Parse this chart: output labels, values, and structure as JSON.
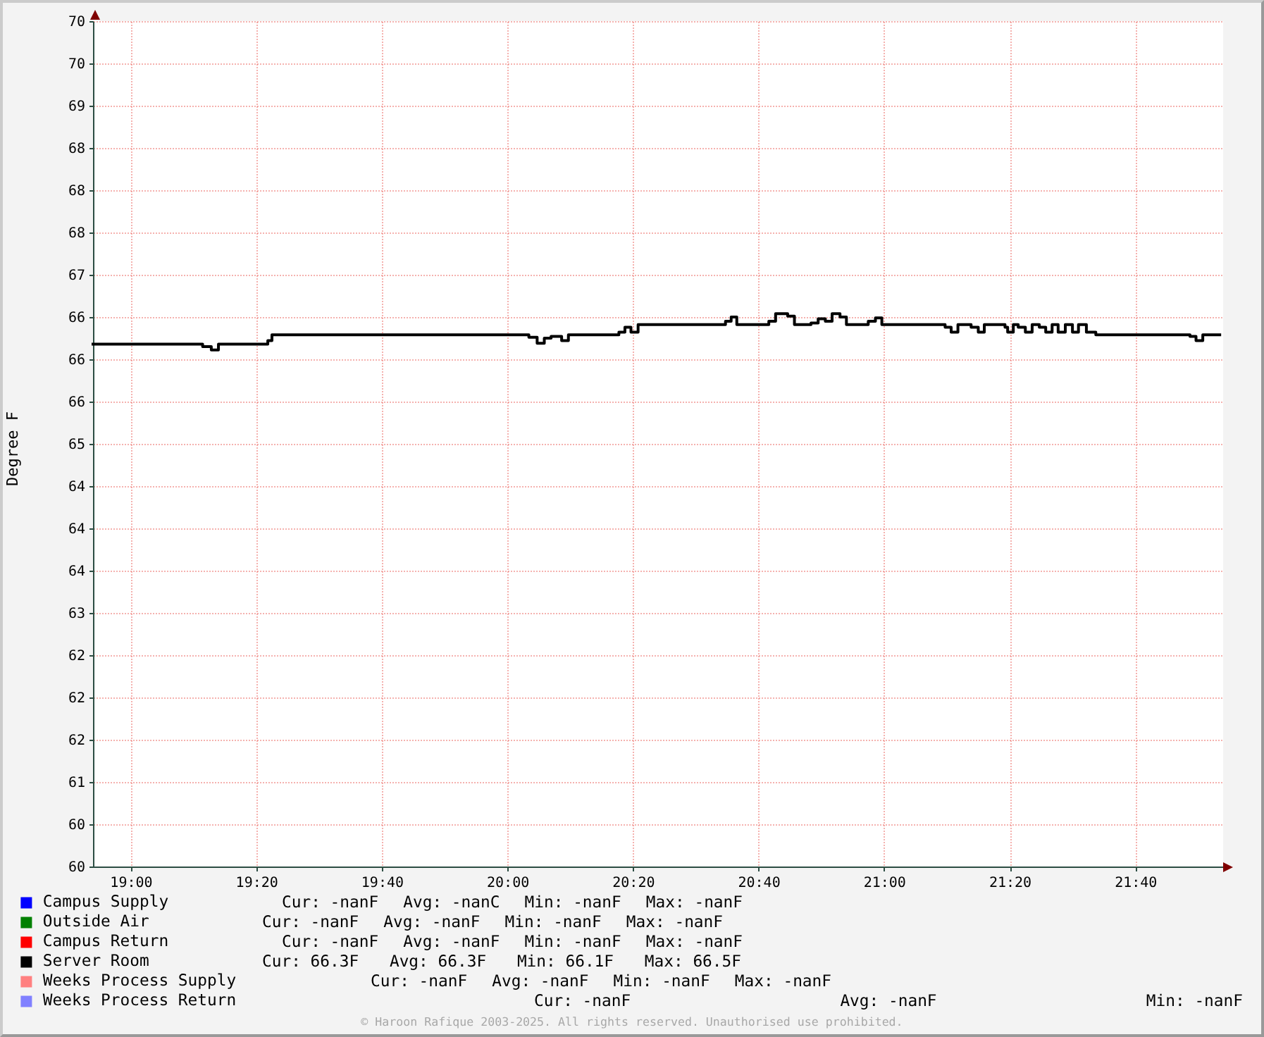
{
  "chart_data": {
    "type": "step",
    "ylabel": "Degree F",
    "x": [
      18.9,
      19.191,
      19.214,
      19.233,
      19.364,
      19.375,
      20.057,
      20.079,
      20.098,
      20.116,
      20.144,
      20.162,
      20.296,
      20.312,
      20.328,
      20.347,
      20.579,
      20.594,
      20.609,
      20.694,
      20.712,
      20.744,
      20.762,
      20.806,
      20.825,
      20.844,
      20.862,
      20.883,
      20.9,
      20.958,
      20.977,
      20.994,
      21.162,
      21.178,
      21.196,
      21.231,
      21.25,
      21.266,
      21.321,
      21.328,
      21.343,
      21.356,
      21.375,
      21.393,
      21.412,
      21.429,
      21.446,
      21.462,
      21.481,
      21.5,
      21.516,
      21.537,
      21.562,
      21.812,
      21.828,
      21.846,
      21.891
    ],
    "xlim": [
      18.9,
      21.9
    ],
    "xticks": [
      {
        "value": 19,
        "label": "19:00"
      },
      {
        "value": 19.333333,
        "label": "19:20"
      },
      {
        "value": 19.666667,
        "label": "19:40"
      },
      {
        "value": 20,
        "label": "20:00"
      },
      {
        "value": 20.333333,
        "label": "20:20"
      },
      {
        "value": 20.666667,
        "label": "20:40"
      },
      {
        "value": 21,
        "label": "21:00"
      },
      {
        "value": 21.333333,
        "label": "21:20"
      },
      {
        "value": 21.666667,
        "label": "21:40"
      }
    ],
    "ylim": [
      60,
      70
    ],
    "yticks": [
      60,
      {
        "value": 60.5,
        "label": "60"
      },
      61,
      {
        "value": 61.5,
        "label": "62"
      },
      62,
      {
        "value": 62.5,
        "label": "62"
      },
      63,
      {
        "value": 63.5,
        "label": "64"
      },
      64,
      {
        "value": 64.5,
        "label": "64"
      },
      65,
      {
        "value": 65.5,
        "label": "66"
      },
      66,
      {
        "value": 66.5,
        "label": "66"
      },
      67,
      {
        "value": 67.5,
        "label": "68"
      },
      68,
      {
        "value": 68.5,
        "label": "68"
      },
      69,
      {
        "value": 69.5,
        "label": "70"
      },
      70
    ],
    "series": [
      {
        "name": "Campus Supply",
        "color": "#0000ff",
        "values": [
          null,
          null,
          null,
          null,
          null,
          null,
          null,
          null,
          null,
          null,
          null,
          null,
          null,
          null,
          null,
          null,
          null,
          null,
          null,
          null,
          null,
          null,
          null,
          null,
          null,
          null,
          null,
          null,
          null,
          null,
          null,
          null,
          null,
          null,
          null,
          null,
          null,
          null,
          null,
          null,
          null,
          null,
          null,
          null,
          null,
          null,
          null,
          null,
          null,
          null,
          null,
          null,
          null,
          null,
          null,
          null,
          null
        ]
      },
      {
        "name": "Outside Air",
        "color": "#008000",
        "values": [
          null,
          null,
          null,
          null,
          null,
          null,
          null,
          null,
          null,
          null,
          null,
          null,
          null,
          null,
          null,
          null,
          null,
          null,
          null,
          null,
          null,
          null,
          null,
          null,
          null,
          null,
          null,
          null,
          null,
          null,
          null,
          null,
          null,
          null,
          null,
          null,
          null,
          null,
          null,
          null,
          null,
          null,
          null,
          null,
          null,
          null,
          null,
          null,
          null,
          null,
          null,
          null,
          null,
          null,
          null,
          null,
          null
        ]
      },
      {
        "name": "Campus Return",
        "color": "#ff0000",
        "values": [
          null,
          null,
          null,
          null,
          null,
          null,
          null,
          null,
          null,
          null,
          null,
          null,
          null,
          null,
          null,
          null,
          null,
          null,
          null,
          null,
          null,
          null,
          null,
          null,
          null,
          null,
          null,
          null,
          null,
          null,
          null,
          null,
          null,
          null,
          null,
          null,
          null,
          null,
          null,
          null,
          null,
          null,
          null,
          null,
          null,
          null,
          null,
          null,
          null,
          null,
          null,
          null,
          null,
          null,
          null,
          null,
          null
        ]
      },
      {
        "name": "Server Room",
        "color": "#000000",
        "values": [
          66.18,
          66.15,
          66.11,
          66.18,
          66.22,
          66.29,
          66.26,
          66.19,
          66.25,
          66.27,
          66.22,
          66.29,
          66.32,
          66.38,
          66.32,
          66.41,
          66.45,
          66.5,
          66.41,
          66.45,
          66.54,
          66.51,
          66.41,
          66.43,
          66.48,
          66.45,
          66.54,
          66.5,
          66.41,
          66.45,
          66.49,
          66.41,
          66.38,
          66.32,
          66.41,
          66.38,
          66.32,
          66.41,
          66.38,
          66.32,
          66.41,
          66.38,
          66.32,
          66.41,
          66.38,
          66.32,
          66.41,
          66.32,
          66.41,
          66.32,
          66.41,
          66.32,
          66.29,
          66.27,
          66.22,
          66.29,
          66.29
        ]
      },
      {
        "name": "Weeks Process Supply",
        "color": "#ff8080",
        "values": [
          null,
          null,
          null,
          null,
          null,
          null,
          null,
          null,
          null,
          null,
          null,
          null,
          null,
          null,
          null,
          null,
          null,
          null,
          null,
          null,
          null,
          null,
          null,
          null,
          null,
          null,
          null,
          null,
          null,
          null,
          null,
          null,
          null,
          null,
          null,
          null,
          null,
          null,
          null,
          null,
          null,
          null,
          null,
          null,
          null,
          null,
          null,
          null,
          null,
          null,
          null,
          null,
          null,
          null,
          null,
          null,
          null
        ]
      },
      {
        "name": "Weeks Process Return",
        "color": "#8080ff",
        "values": [
          null,
          null,
          null,
          null,
          null,
          null,
          null,
          null,
          null,
          null,
          null,
          null,
          null,
          null,
          null,
          null,
          null,
          null,
          null,
          null,
          null,
          null,
          null,
          null,
          null,
          null,
          null,
          null,
          null,
          null,
          null,
          null,
          null,
          null,
          null,
          null,
          null,
          null,
          null,
          null,
          null,
          null,
          null,
          null,
          null,
          null,
          null,
          null,
          null,
          null,
          null,
          null,
          null,
          null,
          null,
          null,
          null
        ]
      }
    ],
    "grid": true,
    "legend": "bottom left",
    "annotations": [
      "Cur: -nanF  Avg: -nanC  Min: -nanF  Max: -nanF",
      "Cur: -nanF  Avg: -nanF  Min: -nanF  Max: -nanF",
      "Cur: -nanF  Avg: -nanF  Min: -nanF  Max: -nanF",
      "Cur: 66.3F  Avg: 66.3F  Min: 66.1F  Max: 66.5F",
      "Cur: -nanF  Avg: -nanF  Min: -nanF  Max: -nanF",
      "Cur: -nanF  Avg: -nanF  Min: -nanF",
      "© Haroon Rafique 2003-2025. All rights reserved. Unauthorised use prohibited."
    ]
  }
}
